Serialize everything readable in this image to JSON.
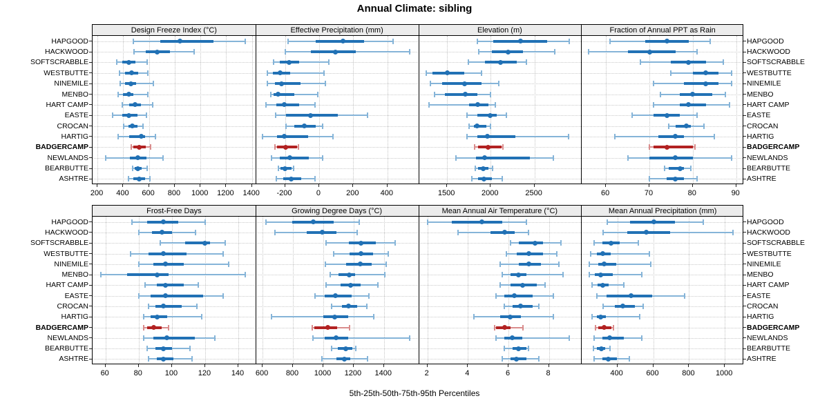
{
  "title": "Annual Climate: sibling",
  "caption": "5th-25th-50th-75th-95th Percentiles",
  "highlight_site": "BADGERCAMP",
  "colors": {
    "series_blue": "#2171b5",
    "series_blue_light": "#85b4d8",
    "highlight_red": "#b22222",
    "highlight_red_light": "#d98c8c",
    "header_bg": "#ececec",
    "panel_border": "#000000",
    "grid": "#c9c9c9",
    "tick": "#222222"
  },
  "chart_data": {
    "type": "percentile-dotplot",
    "title": "Annual Climate: sibling",
    "xlabel": "5th-25th-50th-75th-95th Percentiles",
    "percentile_labels": [
      "5th",
      "25th",
      "50th",
      "75th",
      "95th"
    ],
    "sites": [
      "HAPGOOD",
      "HACKWOOD",
      "SOFTSCRABBLE",
      "WESTBUTTE",
      "NINEMILE",
      "MENBO",
      "HART CAMP",
      "EASTE",
      "CROCAN",
      "HARTIG",
      "BADGERCAMP",
      "NEWLANDS",
      "BEARBUTTE",
      "ASHTRE"
    ],
    "highlight_site": "BADGERCAMP",
    "legend_position": "none",
    "grid": true,
    "panels": [
      {
        "title": "Design Freeze Index (°C)",
        "row": 0,
        "col": 0,
        "xdomain": [
          162,
          1427
        ],
        "xticks": [
          200,
          400,
          600,
          800,
          1000,
          1200,
          1400
        ],
        "values": [
          [
            480,
            690,
            840,
            1100,
            1350
          ],
          [
            485,
            575,
            665,
            765,
            950
          ],
          [
            350,
            390,
            445,
            495,
            585
          ],
          [
            370,
            415,
            465,
            515,
            590
          ],
          [
            377,
            415,
            457,
            500,
            635
          ],
          [
            360,
            400,
            445,
            480,
            590
          ],
          [
            390,
            445,
            490,
            540,
            630
          ],
          [
            320,
            390,
            443,
            510,
            580
          ],
          [
            405,
            440,
            470,
            510,
            553
          ],
          [
            360,
            445,
            540,
            570,
            650
          ],
          [
            460,
            480,
            525,
            575,
            610
          ],
          [
            265,
            450,
            515,
            580,
            710
          ],
          [
            475,
            490,
            515,
            545,
            585
          ],
          [
            440,
            480,
            525,
            570,
            605
          ]
        ]
      },
      {
        "title": "Effective Precipitation (mm)",
        "row": 0,
        "col": 1,
        "xdomain": [
          -373,
          581
        ],
        "xticks": [
          -200,
          0,
          200,
          400
        ],
        "values": [
          [
            -180,
            -20,
            140,
            265,
            435
          ],
          [
            -200,
            -50,
            95,
            215,
            530
          ],
          [
            -265,
            -230,
            -175,
            -115,
            55
          ],
          [
            -305,
            -270,
            -230,
            -170,
            30
          ],
          [
            -305,
            -260,
            -220,
            -110,
            35
          ],
          [
            -285,
            -265,
            -240,
            -145,
            -10
          ],
          [
            -310,
            -250,
            -205,
            -115,
            -25
          ],
          [
            -255,
            -195,
            -50,
            110,
            285
          ],
          [
            -195,
            -145,
            -85,
            -20,
            20
          ],
          [
            -330,
            -245,
            -205,
            -65,
            80
          ],
          [
            -260,
            -245,
            -195,
            -130,
            -122
          ],
          [
            -280,
            -230,
            -170,
            -60,
            20
          ],
          [
            -240,
            -225,
            -200,
            -160,
            -148
          ],
          [
            -250,
            -210,
            -165,
            -105,
            -25
          ]
        ]
      },
      {
        "title": "Elevation (m)",
        "row": 0,
        "col": 2,
        "xdomain": [
          1171,
          3035
        ],
        "xticks": [
          1500,
          2000,
          2500
        ],
        "values": [
          [
            1850,
            2030,
            2340,
            2650,
            2900
          ],
          [
            1860,
            2015,
            2200,
            2370,
            2730
          ],
          [
            1740,
            1935,
            2110,
            2295,
            2405
          ],
          [
            1260,
            1330,
            1505,
            1700,
            1895
          ],
          [
            1310,
            1445,
            1700,
            1895,
            2090
          ],
          [
            1360,
            1475,
            1705,
            1845,
            2000
          ],
          [
            1295,
            1750,
            1850,
            1975,
            2055
          ],
          [
            1725,
            1845,
            1990,
            2070,
            2180
          ],
          [
            1750,
            1805,
            1845,
            1950,
            1995
          ],
          [
            1725,
            1845,
            1965,
            2280,
            2890
          ],
          [
            1815,
            1855,
            1970,
            2120,
            2140
          ],
          [
            1605,
            1830,
            1930,
            2450,
            2715
          ],
          [
            1825,
            1855,
            1915,
            1975,
            2020
          ],
          [
            1780,
            1855,
            1920,
            2015,
            2135
          ]
        ]
      },
      {
        "title": "Fraction of Annual PPT as Rain",
        "row": 0,
        "col": 3,
        "xdomain": [
          54.3,
          91.8
        ],
        "xticks": [
          60,
          70,
          80,
          90
        ],
        "values": [
          [
            61,
            69,
            74,
            79,
            84
          ],
          [
            56,
            65,
            70,
            76,
            81
          ],
          [
            68,
            75,
            79,
            83,
            87
          ],
          [
            75,
            80,
            83,
            86,
            89
          ],
          [
            71,
            78,
            83,
            86,
            89
          ],
          [
            72.5,
            77,
            80,
            84.5,
            87.5
          ],
          [
            71,
            77,
            79,
            83,
            88.5
          ],
          [
            66,
            71,
            74,
            77,
            81
          ],
          [
            74.5,
            76,
            78.5,
            79.5,
            82.5
          ],
          [
            62,
            72,
            76,
            78,
            85
          ],
          [
            70,
            71,
            74,
            80,
            80.5
          ],
          [
            65,
            70,
            76,
            80,
            89
          ],
          [
            73.5,
            74.5,
            77,
            78,
            79.5
          ],
          [
            70,
            74,
            76,
            78,
            81
          ]
        ]
      },
      {
        "title": "Frost-Free Days",
        "row": 1,
        "col": 0,
        "xdomain": [
          52.2,
          150.3
        ],
        "xticks": [
          60,
          80,
          100,
          120,
          140
        ],
        "values": [
          [
            76,
            85,
            95,
            104,
            120
          ],
          [
            80,
            88,
            94,
            100,
            114
          ],
          [
            93,
            108,
            120,
            123,
            132
          ],
          [
            75,
            86,
            95,
            109,
            131
          ],
          [
            80,
            89,
            96,
            107,
            134
          ],
          [
            57,
            73,
            91,
            98,
            144
          ],
          [
            84,
            91,
            96,
            107,
            116
          ],
          [
            80,
            87,
            96,
            119,
            131
          ],
          [
            86,
            90,
            95,
            106,
            115
          ],
          [
            83,
            87,
            91,
            97,
            118
          ],
          [
            83,
            85,
            89,
            94,
            98
          ],
          [
            83,
            89,
            97,
            114,
            126
          ],
          [
            85,
            90,
            95,
            100,
            111
          ],
          [
            86,
            91,
            95,
            101,
            112
          ]
        ]
      },
      {
        "title": "Growing Degree Days (°C)",
        "row": 1,
        "col": 1,
        "xdomain": [
          553,
          1626
        ],
        "xticks": [
          600,
          800,
          1000,
          1200,
          1400
        ],
        "values": [
          [
            620,
            795,
            935,
            1070,
            1235
          ],
          [
            680,
            890,
            995,
            1085,
            1225
          ],
          [
            1020,
            1170,
            1250,
            1345,
            1475
          ],
          [
            1070,
            1175,
            1250,
            1330,
            1430
          ],
          [
            1015,
            1150,
            1245,
            1320,
            1415
          ],
          [
            1045,
            1100,
            1170,
            1210,
            1405
          ],
          [
            1020,
            1115,
            1180,
            1245,
            1360
          ],
          [
            945,
            1010,
            1080,
            1185,
            1300
          ],
          [
            1055,
            1125,
            1165,
            1225,
            1285
          ],
          [
            660,
            1000,
            1075,
            1165,
            1330
          ],
          [
            925,
            940,
            1030,
            1090,
            1175
          ],
          [
            930,
            1010,
            1085,
            1165,
            1570
          ],
          [
            1055,
            1095,
            1150,
            1190,
            1212
          ],
          [
            990,
            1085,
            1140,
            1180,
            1290
          ]
        ]
      },
      {
        "title": "Mean Annual Air Temperature (°C)",
        "row": 1,
        "col": 2,
        "xdomain": [
          1.55,
          9.59
        ],
        "xticks": [
          2,
          4,
          6,
          8
        ],
        "values": [
          [
            2.0,
            3.2,
            4.7,
            5.7,
            6.9
          ],
          [
            3.5,
            5.1,
            5.8,
            6.3,
            7.0
          ],
          [
            6.1,
            6.5,
            7.3,
            7.7,
            8.6
          ],
          [
            5.9,
            6.4,
            7.0,
            7.7,
            8.4
          ],
          [
            5.6,
            6.5,
            7.0,
            7.6,
            8.5
          ],
          [
            5.7,
            6.1,
            6.5,
            6.9,
            8.7
          ],
          [
            5.6,
            6.1,
            6.7,
            7.4,
            7.8
          ],
          [
            5.4,
            5.8,
            6.3,
            7.2,
            8.2
          ],
          [
            5.8,
            6.2,
            6.6,
            7.2,
            7.5
          ],
          [
            4.3,
            5.6,
            6.1,
            6.6,
            8.2
          ],
          [
            5.3,
            5.4,
            5.8,
            6.1,
            6.7
          ],
          [
            5.4,
            5.8,
            6.2,
            6.7,
            9.0
          ],
          [
            5.8,
            6.2,
            6.5,
            6.9,
            7.0
          ],
          [
            5.7,
            6.1,
            6.4,
            6.9,
            7.5
          ]
        ]
      },
      {
        "title": "Mean Annual Precipitation (mm)",
        "row": 1,
        "col": 3,
        "xdomain": [
          198,
          1107
        ],
        "xticks": [
          400,
          600,
          800,
          1000
        ],
        "values": [
          [
            345,
            470,
            605,
            720,
            880
          ],
          [
            320,
            455,
            560,
            695,
            1045
          ],
          [
            270,
            315,
            365,
            415,
            515
          ],
          [
            250,
            285,
            320,
            365,
            580
          ],
          [
            245,
            295,
            325,
            395,
            585
          ],
          [
            245,
            275,
            305,
            375,
            535
          ],
          [
            260,
            290,
            320,
            350,
            435
          ],
          [
            285,
            340,
            475,
            595,
            775
          ],
          [
            320,
            385,
            430,
            500,
            545
          ],
          [
            260,
            285,
            305,
            335,
            525
          ],
          [
            278,
            292,
            326,
            368,
            377
          ],
          [
            272,
            315,
            355,
            438,
            536
          ],
          [
            268,
            287,
            312,
            332,
            360
          ],
          [
            272,
            315,
            350,
            397,
            468
          ]
        ]
      }
    ]
  }
}
